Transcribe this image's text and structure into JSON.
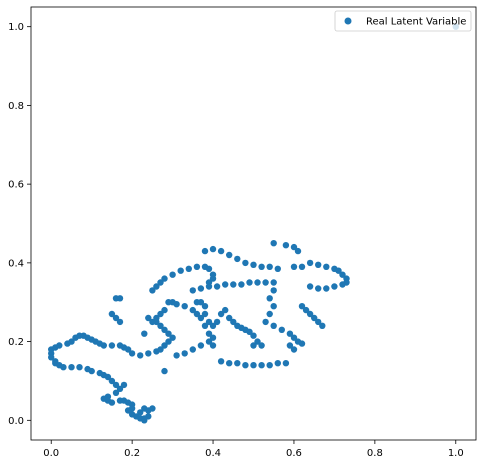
{
  "chart_data": {
    "type": "scatter",
    "title": "",
    "xlabel": "",
    "ylabel": "",
    "xlim": [
      -0.05,
      1.05
    ],
    "ylim": [
      -0.05,
      1.05
    ],
    "grid": false,
    "legend": {
      "position": "top-right",
      "entries": [
        "Real Latent Variable"
      ]
    },
    "x_ticks": [
      0.0,
      0.2,
      0.4,
      0.6,
      0.8,
      1.0
    ],
    "x_tick_labels": [
      "0.0",
      "0.2",
      "0.4",
      "0.6",
      "0.8",
      "1.0"
    ],
    "y_ticks": [
      0.0,
      0.2,
      0.4,
      0.6,
      0.8,
      1.0
    ],
    "y_tick_labels": [
      "0.0",
      "0.2",
      "0.4",
      "0.6",
      "0.8",
      "1.0"
    ],
    "colors": {
      "series": "#1f77b4"
    },
    "series": [
      {
        "name": "Real Latent Variable",
        "points": [
          [
            0.0,
            0.18
          ],
          [
            0.0,
            0.17
          ],
          [
            0.0,
            0.16
          ],
          [
            0.01,
            0.15
          ],
          [
            0.01,
            0.145
          ],
          [
            0.02,
            0.14
          ],
          [
            0.03,
            0.135
          ],
          [
            0.05,
            0.135
          ],
          [
            0.07,
            0.135
          ],
          [
            0.09,
            0.13
          ],
          [
            0.1,
            0.125
          ],
          [
            0.12,
            0.12
          ],
          [
            0.13,
            0.115
          ],
          [
            0.01,
            0.185
          ],
          [
            0.02,
            0.19
          ],
          [
            0.04,
            0.195
          ],
          [
            0.05,
            0.2
          ],
          [
            0.06,
            0.21
          ],
          [
            0.07,
            0.215
          ],
          [
            0.08,
            0.215
          ],
          [
            0.09,
            0.21
          ],
          [
            0.1,
            0.205
          ],
          [
            0.11,
            0.2
          ],
          [
            0.12,
            0.195
          ],
          [
            0.13,
            0.19
          ],
          [
            0.15,
            0.19
          ],
          [
            0.17,
            0.19
          ],
          [
            0.18,
            0.185
          ],
          [
            0.19,
            0.18
          ],
          [
            0.2,
            0.17
          ],
          [
            0.22,
            0.165
          ],
          [
            0.24,
            0.17
          ],
          [
            0.26,
            0.175
          ],
          [
            0.27,
            0.18
          ],
          [
            0.14,
            0.11
          ],
          [
            0.15,
            0.1
          ],
          [
            0.16,
            0.09
          ],
          [
            0.17,
            0.08
          ],
          [
            0.18,
            0.09
          ],
          [
            0.16,
            0.07
          ],
          [
            0.14,
            0.06
          ],
          [
            0.13,
            0.055
          ],
          [
            0.14,
            0.05
          ],
          [
            0.15,
            0.045
          ],
          [
            0.17,
            0.05
          ],
          [
            0.18,
            0.05
          ],
          [
            0.19,
            0.045
          ],
          [
            0.2,
            0.04
          ],
          [
            0.2,
            0.03
          ],
          [
            0.19,
            0.025
          ],
          [
            0.2,
            0.015
          ],
          [
            0.21,
            0.01
          ],
          [
            0.22,
            0.005
          ],
          [
            0.23,
            0.0
          ],
          [
            0.22,
            0.02
          ],
          [
            0.23,
            0.03
          ],
          [
            0.24,
            0.025
          ],
          [
            0.25,
            0.03
          ],
          [
            0.24,
            0.01
          ],
          [
            0.23,
            0.005
          ],
          [
            0.28,
            0.19
          ],
          [
            0.29,
            0.2
          ],
          [
            0.3,
            0.21
          ],
          [
            0.29,
            0.22
          ],
          [
            0.28,
            0.23
          ],
          [
            0.27,
            0.24
          ],
          [
            0.26,
            0.25
          ],
          [
            0.25,
            0.25
          ],
          [
            0.26,
            0.26
          ],
          [
            0.27,
            0.27
          ],
          [
            0.28,
            0.28
          ],
          [
            0.29,
            0.3
          ],
          [
            0.3,
            0.3
          ],
          [
            0.31,
            0.295
          ],
          [
            0.33,
            0.29
          ],
          [
            0.35,
            0.28
          ],
          [
            0.36,
            0.27
          ],
          [
            0.37,
            0.26
          ],
          [
            0.38,
            0.24
          ],
          [
            0.39,
            0.22
          ],
          [
            0.4,
            0.21
          ],
          [
            0.39,
            0.2
          ],
          [
            0.37,
            0.19
          ],
          [
            0.35,
            0.18
          ],
          [
            0.33,
            0.17
          ],
          [
            0.31,
            0.165
          ],
          [
            0.28,
            0.125
          ],
          [
            0.25,
            0.33
          ],
          [
            0.26,
            0.34
          ],
          [
            0.27,
            0.35
          ],
          [
            0.28,
            0.36
          ],
          [
            0.3,
            0.37
          ],
          [
            0.32,
            0.38
          ],
          [
            0.34,
            0.385
          ],
          [
            0.36,
            0.39
          ],
          [
            0.38,
            0.39
          ],
          [
            0.39,
            0.385
          ],
          [
            0.4,
            0.37
          ],
          [
            0.4,
            0.36
          ],
          [
            0.39,
            0.35
          ],
          [
            0.38,
            0.43
          ],
          [
            0.4,
            0.435
          ],
          [
            0.42,
            0.43
          ],
          [
            0.44,
            0.42
          ],
          [
            0.46,
            0.41
          ],
          [
            0.48,
            0.4
          ],
          [
            0.5,
            0.395
          ],
          [
            0.52,
            0.39
          ],
          [
            0.54,
            0.39
          ],
          [
            0.56,
            0.385
          ],
          [
            0.35,
            0.33
          ],
          [
            0.37,
            0.335
          ],
          [
            0.39,
            0.34
          ],
          [
            0.41,
            0.34
          ],
          [
            0.43,
            0.345
          ],
          [
            0.45,
            0.345
          ],
          [
            0.47,
            0.345
          ],
          [
            0.49,
            0.35
          ],
          [
            0.51,
            0.35
          ],
          [
            0.53,
            0.35
          ],
          [
            0.55,
            0.35
          ],
          [
            0.55,
            0.33
          ],
          [
            0.54,
            0.31
          ],
          [
            0.55,
            0.29
          ],
          [
            0.54,
            0.27
          ],
          [
            0.53,
            0.25
          ],
          [
            0.36,
            0.3
          ],
          [
            0.37,
            0.3
          ],
          [
            0.38,
            0.29
          ],
          [
            0.38,
            0.27
          ],
          [
            0.39,
            0.25
          ],
          [
            0.4,
            0.24
          ],
          [
            0.41,
            0.25
          ],
          [
            0.42,
            0.27
          ],
          [
            0.43,
            0.28
          ],
          [
            0.44,
            0.26
          ],
          [
            0.45,
            0.25
          ],
          [
            0.46,
            0.24
          ],
          [
            0.47,
            0.235
          ],
          [
            0.48,
            0.23
          ],
          [
            0.49,
            0.225
          ],
          [
            0.5,
            0.215
          ],
          [
            0.51,
            0.2
          ],
          [
            0.52,
            0.19
          ],
          [
            0.5,
            0.19
          ],
          [
            0.42,
            0.15
          ],
          [
            0.44,
            0.145
          ],
          [
            0.46,
            0.145
          ],
          [
            0.48,
            0.14
          ],
          [
            0.5,
            0.14
          ],
          [
            0.52,
            0.14
          ],
          [
            0.54,
            0.14
          ],
          [
            0.56,
            0.145
          ],
          [
            0.58,
            0.145
          ],
          [
            0.55,
            0.45
          ],
          [
            0.58,
            0.445
          ],
          [
            0.6,
            0.44
          ],
          [
            0.61,
            0.43
          ],
          [
            0.6,
            0.39
          ],
          [
            0.62,
            0.39
          ],
          [
            0.64,
            0.4
          ],
          [
            0.66,
            0.395
          ],
          [
            0.68,
            0.39
          ],
          [
            0.7,
            0.385
          ],
          [
            0.71,
            0.38
          ],
          [
            0.72,
            0.37
          ],
          [
            0.73,
            0.36
          ],
          [
            0.73,
            0.35
          ],
          [
            0.72,
            0.345
          ],
          [
            0.7,
            0.34
          ],
          [
            0.68,
            0.335
          ],
          [
            0.66,
            0.335
          ],
          [
            0.64,
            0.34
          ],
          [
            0.62,
            0.29
          ],
          [
            0.63,
            0.28
          ],
          [
            0.64,
            0.27
          ],
          [
            0.65,
            0.26
          ],
          [
            0.66,
            0.25
          ],
          [
            0.67,
            0.24
          ],
          [
            0.55,
            0.24
          ],
          [
            0.57,
            0.23
          ],
          [
            0.59,
            0.22
          ],
          [
            0.6,
            0.21
          ],
          [
            0.61,
            0.2
          ],
          [
            0.62,
            0.195
          ],
          [
            0.6,
            0.18
          ],
          [
            0.59,
            0.19
          ],
          [
            0.15,
            0.27
          ],
          [
            0.16,
            0.26
          ],
          [
            0.17,
            0.25
          ],
          [
            0.16,
            0.31
          ],
          [
            0.17,
            0.31
          ],
          [
            0.24,
            0.26
          ],
          [
            0.23,
            0.22
          ],
          [
            0.4,
            0.19
          ],
          [
            1.0,
            1.0
          ]
        ]
      }
    ]
  }
}
